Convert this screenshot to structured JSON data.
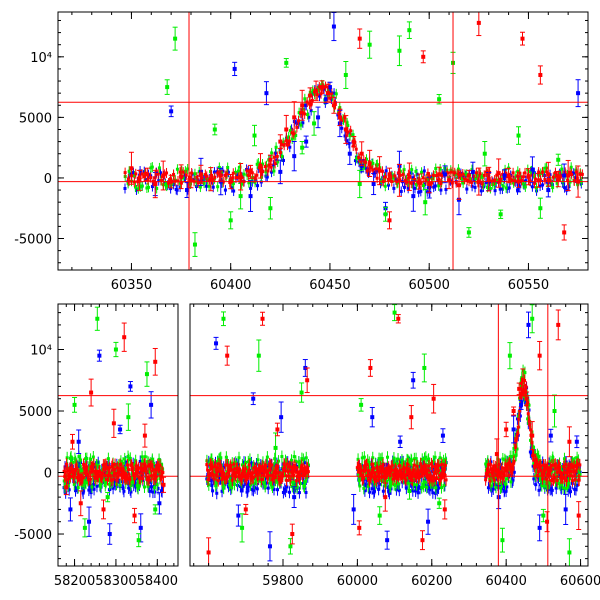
{
  "chart_data": [
    {
      "type": "scatter",
      "title": "",
      "xlabel": "",
      "ylabel": "",
      "xlim": [
        60313,
        60580
      ],
      "ylim": [
        -7600,
        13700
      ],
      "x_ticks": [
        60350,
        60400,
        60450,
        60500,
        60550
      ],
      "y_ticks": [
        {
          "value": 10000,
          "label": "10⁴"
        },
        {
          "value": 5000,
          "label": "5000"
        },
        {
          "value": 0,
          "label": "0"
        },
        {
          "value": -5000,
          "label": "-5000"
        }
      ],
      "reference_lines": {
        "horizontal": [
          6250,
          -300
        ],
        "vertical": [
          60379,
          60512
        ]
      },
      "series_colors": {
        "blue": "#0000ff",
        "green": "#00ee00",
        "red": "#ff0000"
      },
      "series": [
        {
          "color": "blue",
          "name": "",
          "x": [
            60362,
            60370,
            60378,
            60385,
            60395,
            60402,
            60410,
            60418,
            60425,
            60432,
            60438,
            60444,
            60448,
            60450,
            60452,
            60455,
            60460,
            60466,
            60472,
            60478,
            60485,
            60492,
            60500,
            60508,
            60515,
            60522,
            60530,
            60538,
            60545,
            60552,
            60560,
            60568,
            60575
          ],
          "values": [
            -500,
            5500,
            -1000,
            500,
            -300,
            9000,
            -1500,
            7000,
            500,
            1800,
            3000,
            5000,
            6500,
            7500,
            12500,
            4500,
            2000,
            1000,
            -500,
            -2500,
            1000,
            -1500,
            -800,
            300,
            -1800,
            500,
            -300,
            200,
            -500,
            700,
            -1000,
            200,
            7000
          ]
        },
        {
          "color": "green",
          "name": "",
          "x": [
            60368,
            60372,
            60382,
            60392,
            60400,
            60405,
            60412,
            60420,
            60428,
            60436,
            60442,
            60458,
            60465,
            60470,
            60478,
            60485,
            60490,
            60498,
            60505,
            60512,
            60520,
            60528,
            60536,
            60545,
            60556,
            60565
          ],
          "values": [
            7500,
            11500,
            -5500,
            4000,
            -3500,
            -1500,
            3500,
            -2500,
            9500,
            2500,
            4500,
            8500,
            -500,
            11000,
            -3000,
            10500,
            12200,
            -2000,
            6500,
            9500,
            -4500,
            2000,
            -3000,
            3500,
            -2500,
            1500
          ]
        },
        {
          "color": "red",
          "name": "",
          "x": [
            60350,
            60354,
            60358,
            60362,
            60366,
            60370,
            60375,
            60380,
            60385,
            60390,
            60395,
            60400,
            60405,
            60410,
            60415,
            60420,
            60425,
            60428,
            60432,
            60436,
            60440,
            60443,
            60446,
            60449,
            60452,
            60455,
            60458,
            60462,
            60466,
            60470,
            60475,
            60480,
            60485,
            60490,
            60495,
            60500,
            60505,
            60510,
            60515,
            60520,
            60525,
            60530,
            60535,
            60540,
            60545,
            60550,
            60555,
            60560,
            60565,
            60570,
            60575,
            60465,
            60480,
            60497,
            60525,
            60547,
            60556,
            60568
          ],
          "values": [
            800,
            -200,
            300,
            -500,
            200,
            -300,
            100,
            -200,
            300,
            -100,
            200,
            -300,
            100,
            500,
            1000,
            1500,
            3000,
            4000,
            5000,
            6000,
            6800,
            7200,
            7500,
            7000,
            6000,
            5000,
            4000,
            3000,
            2000,
            1200,
            600,
            300,
            -200,
            100,
            -300,
            -500,
            300,
            -200,
            -600,
            200,
            -300,
            -100,
            400,
            200,
            -300,
            100,
            -200,
            300,
            -100,
            200,
            -300,
            11500,
            -3500,
            10000,
            12800,
            11500,
            8500,
            -4500
          ]
        }
      ]
    },
    {
      "type": "scatter",
      "title": "",
      "xlabel": "",
      "ylabel": "",
      "ylim": [
        -7600,
        13700
      ],
      "broken_x_axis": true,
      "panels": [
        {
          "xlim": [
            58160,
            58450
          ],
          "x_ticks": [
            58200,
            58300,
            58400
          ]
        },
        {
          "xlim": [
            59550,
            60620
          ],
          "x_ticks": [
            59800,
            60000,
            60200,
            60400,
            60600
          ]
        }
      ],
      "y_ticks": [
        {
          "value": 10000,
          "label": "10⁴"
        },
        {
          "value": 5000,
          "label": "5000"
        },
        {
          "value": 0,
          "label": "0"
        },
        {
          "value": -5000,
          "label": "-5000"
        }
      ],
      "reference_lines": {
        "horizontal": [
          6250,
          -300
        ],
        "vertical": [
          60379,
          60512
        ]
      },
      "series_colors": {
        "blue": "#0000ff",
        "green": "#00ee00",
        "red": "#ff0000"
      },
      "series": [
        {
          "color": "blue",
          "name": "",
          "x": [
            58190,
            58210,
            58235,
            58260,
            58285,
            58310,
            58335,
            58360,
            58385,
            58405,
            59620,
            59680,
            59720,
            59765,
            59795,
            59830,
            59860,
            59990,
            60040,
            60080,
            60115,
            60150,
            60190,
            60230,
            60380,
            60420,
            60440,
            60460,
            60490,
            60520,
            60560,
            60590
          ],
          "values": [
            -3000,
            2500,
            -4000,
            9500,
            -5000,
            3500,
            7000,
            -4500,
            5500,
            -2500,
            10500,
            -3500,
            6000,
            -6000,
            4500,
            -2000,
            8500,
            -3000,
            4500,
            -5500,
            2500,
            7500,
            -4000,
            3000,
            -2000,
            3500,
            5500,
            12000,
            -4500,
            3000,
            -3000,
            2500
          ]
        },
        {
          "color": "green",
          "name": "",
          "x": [
            58200,
            58225,
            58255,
            58280,
            58300,
            58330,
            58355,
            58375,
            58395,
            59640,
            59690,
            59735,
            59780,
            59820,
            59850,
            60010,
            60060,
            60100,
            60140,
            60180,
            60220,
            60390,
            60410,
            60470,
            60500,
            60530,
            60570
          ],
          "values": [
            5500,
            -4500,
            12500,
            -2000,
            10000,
            4500,
            -5500,
            8000,
            -3000,
            12500,
            -4500,
            9500,
            2000,
            -6000,
            6500,
            5500,
            -3500,
            13000,
            -1500,
            8500,
            -2500,
            -5500,
            9500,
            12500,
            -3500,
            5000,
            -6500
          ]
        },
        {
          "color": "red",
          "name": "",
          "x": [
            58180,
            58195,
            58215,
            58240,
            58270,
            58295,
            58320,
            58345,
            58370,
            58395,
            58415,
            59600,
            59650,
            59700,
            59745,
            59785,
            59825,
            59865,
            60005,
            60035,
            60075,
            60110,
            60145,
            60175,
            60205,
            60235,
            60375,
            60400,
            60420,
            60435,
            60445,
            60455,
            60470,
            60490,
            60510,
            60540,
            60570,
            60595
          ],
          "values": [
            -1200,
            2500,
            -2500,
            6500,
            -3000,
            4000,
            11000,
            -3500,
            3000,
            9000,
            -1000,
            -6500,
            9500,
            -3000,
            12500,
            3500,
            -5000,
            7500,
            -4500,
            8500,
            -2000,
            12500,
            4500,
            -5500,
            6000,
            -3000,
            1500,
            3500,
            5000,
            6800,
            7500,
            6000,
            3000,
            9500,
            -4000,
            12000,
            2500,
            -3500
          ]
        }
      ]
    }
  ]
}
